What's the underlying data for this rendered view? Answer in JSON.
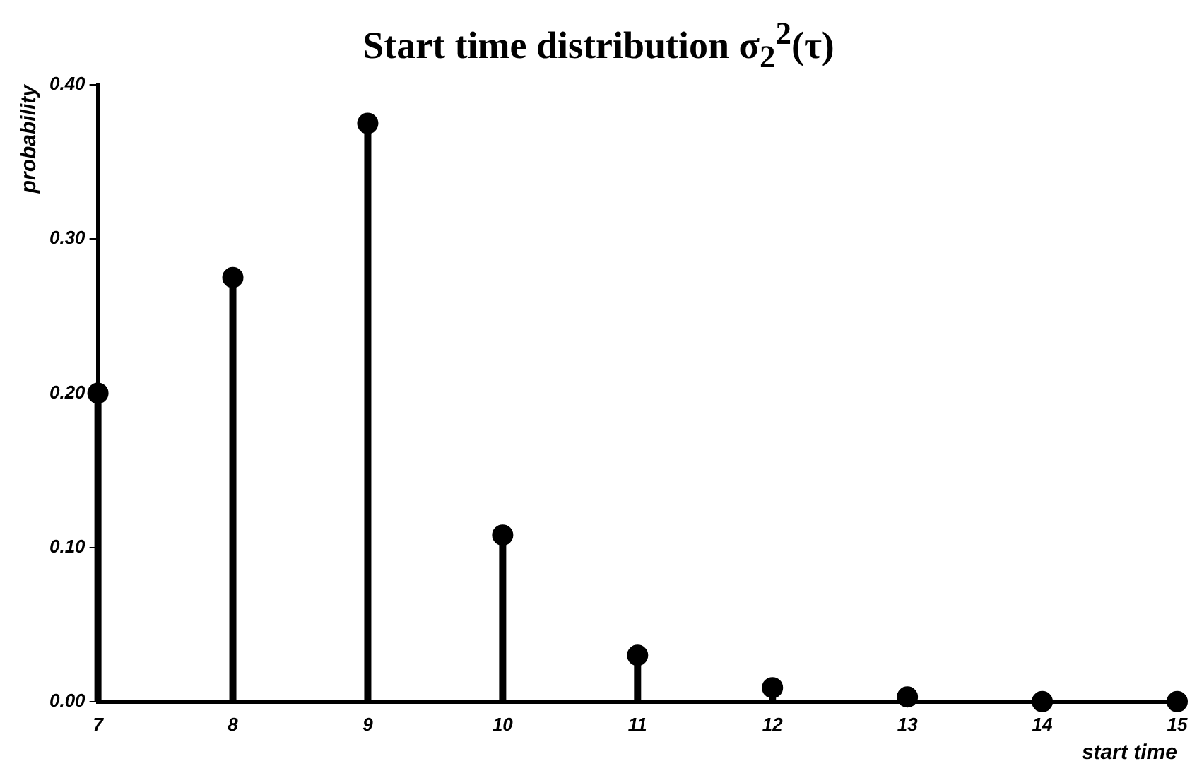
{
  "chart_data": {
    "type": "lollipop",
    "title": "Start time distribution σ$_{2}$$^{2}$(τ)",
    "xlabel": "start time",
    "ylabel": "probability",
    "x": [
      7,
      8,
      9,
      10,
      11,
      12,
      13,
      14,
      15
    ],
    "values": [
      0.2,
      0.275,
      0.375,
      0.108,
      0.03,
      0.009,
      0.003,
      0.0,
      0.0
    ],
    "color": "#000000",
    "marker": "circle",
    "xlim": [
      7,
      15
    ],
    "xticks": [
      7,
      8,
      9,
      10,
      11,
      12,
      13,
      14,
      15
    ],
    "ylim": [
      0,
      0.4
    ],
    "yticks": [
      {
        "value": 0,
        "label": "0.00"
      },
      {
        "value": 0.1,
        "label": "0.10"
      },
      {
        "value": 0.2,
        "label": "0.20"
      },
      {
        "value": 0.3,
        "label": "0.30"
      },
      {
        "value": 0.4,
        "label": "0.40"
      }
    ]
  }
}
